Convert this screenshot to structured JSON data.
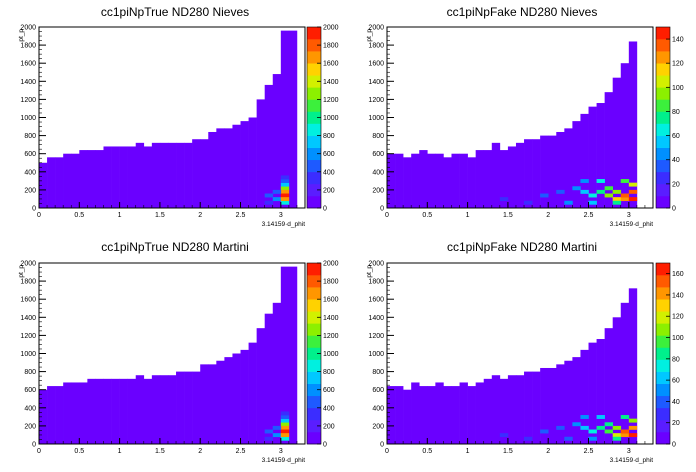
{
  "chart_data": [
    {
      "type": "heatmap",
      "title": "cc1piNpTrue ND280 Nieves",
      "xlabel": "3.14159·d_phit",
      "ylabel": "pt_p",
      "xlim": [
        0,
        3.3
      ],
      "ylim": [
        0,
        2000
      ],
      "xticks": [
        "0",
        "0.5",
        "1",
        "1.5",
        "2",
        "2.5",
        "3"
      ],
      "yticks": [
        "0",
        "200",
        "400",
        "600",
        "800",
        "1000",
        "1200",
        "1400",
        "1600",
        "1800",
        "2000"
      ],
      "zlim": [
        0,
        2000
      ],
      "zticks": [
        "0",
        "200",
        "400",
        "600",
        "800",
        "1000",
        "1200",
        "1400",
        "1600",
        "1800",
        "2000"
      ],
      "grid": false,
      "profile": [
        [
          0.1,
          500
        ],
        [
          0.2,
          560
        ],
        [
          0.3,
          560
        ],
        [
          0.4,
          600
        ],
        [
          0.5,
          600
        ],
        [
          0.6,
          640
        ],
        [
          0.7,
          640
        ],
        [
          0.8,
          640
        ],
        [
          0.9,
          680
        ],
        [
          1.0,
          680
        ],
        [
          1.1,
          680
        ],
        [
          1.2,
          680
        ],
        [
          1.3,
          720
        ],
        [
          1.4,
          680
        ],
        [
          1.5,
          720
        ],
        [
          1.6,
          720
        ],
        [
          1.7,
          720
        ],
        [
          1.8,
          720
        ],
        [
          1.9,
          720
        ],
        [
          2.0,
          760
        ],
        [
          2.1,
          760
        ],
        [
          2.2,
          840
        ],
        [
          2.3,
          880
        ],
        [
          2.4,
          880
        ],
        [
          2.5,
          920
        ],
        [
          2.6,
          960
        ],
        [
          2.7,
          1000
        ],
        [
          2.8,
          1200
        ],
        [
          2.9,
          1360
        ],
        [
          3.0,
          1480
        ],
        [
          3.1,
          1960
        ],
        [
          3.2,
          1960
        ]
      ],
      "hotspots": [
        {
          "x": 2.9,
          "y": 160,
          "value": 400
        },
        {
          "x": 3.0,
          "y": 120,
          "value": 600
        },
        {
          "x": 3.1,
          "y": 80,
          "value": 900
        },
        {
          "x": 3.1,
          "y": 240,
          "value": 1300
        },
        {
          "x": 3.1,
          "y": 200,
          "value": 1600
        },
        {
          "x": 3.1,
          "y": 160,
          "value": 1900
        },
        {
          "x": 3.1,
          "y": 120,
          "value": 1700
        },
        {
          "x": 3.1,
          "y": 280,
          "value": 700
        },
        {
          "x": 3.1,
          "y": 320,
          "value": 500
        },
        {
          "x": 3.1,
          "y": 360,
          "value": 350
        },
        {
          "x": 3.0,
          "y": 200,
          "value": 400
        },
        {
          "x": 2.9,
          "y": 80,
          "value": 300
        }
      ]
    },
    {
      "type": "heatmap",
      "title": "cc1piNpFake ND280 Nieves",
      "xlabel": "3.14159·d_phit",
      "ylabel": "pt_p",
      "xlim": [
        0,
        3.3
      ],
      "ylim": [
        0,
        2000
      ],
      "xticks": [
        "0",
        "0.5",
        "1",
        "1.5",
        "2",
        "2.5",
        "3"
      ],
      "yticks": [
        "0",
        "200",
        "400",
        "600",
        "800",
        "1000",
        "1200",
        "1400",
        "1600",
        "1800",
        "2000"
      ],
      "zlim": [
        0,
        150
      ],
      "zticks": [
        "0",
        "20",
        "40",
        "60",
        "80",
        "100",
        "120",
        "140"
      ],
      "grid": false,
      "profile": [
        [
          0.1,
          600
        ],
        [
          0.2,
          600
        ],
        [
          0.3,
          560
        ],
        [
          0.4,
          600
        ],
        [
          0.5,
          640
        ],
        [
          0.6,
          600
        ],
        [
          0.7,
          600
        ],
        [
          0.8,
          560
        ],
        [
          0.9,
          600
        ],
        [
          1.0,
          600
        ],
        [
          1.1,
          560
        ],
        [
          1.2,
          640
        ],
        [
          1.3,
          640
        ],
        [
          1.4,
          720
        ],
        [
          1.5,
          640
        ],
        [
          1.6,
          680
        ],
        [
          1.7,
          720
        ],
        [
          1.8,
          760
        ],
        [
          1.9,
          760
        ],
        [
          2.0,
          800
        ],
        [
          2.1,
          800
        ],
        [
          2.2,
          840
        ],
        [
          2.3,
          880
        ],
        [
          2.4,
          960
        ],
        [
          2.5,
          1040
        ],
        [
          2.6,
          1120
        ],
        [
          2.7,
          1160
        ],
        [
          2.8,
          1280
        ],
        [
          2.9,
          1440
        ],
        [
          3.0,
          1600
        ],
        [
          3.1,
          1840
        ]
      ],
      "hotspots": [
        {
          "x": 2.0,
          "y": 160,
          "value": 30
        },
        {
          "x": 2.2,
          "y": 200,
          "value": 35
        },
        {
          "x": 2.4,
          "y": 240,
          "value": 45
        },
        {
          "x": 2.5,
          "y": 200,
          "value": 55
        },
        {
          "x": 2.6,
          "y": 160,
          "value": 65
        },
        {
          "x": 2.7,
          "y": 200,
          "value": 75
        },
        {
          "x": 2.8,
          "y": 240,
          "value": 80
        },
        {
          "x": 2.8,
          "y": 160,
          "value": 90
        },
        {
          "x": 2.9,
          "y": 120,
          "value": 110
        },
        {
          "x": 2.9,
          "y": 200,
          "value": 95
        },
        {
          "x": 3.0,
          "y": 120,
          "value": 125
        },
        {
          "x": 3.0,
          "y": 160,
          "value": 135
        },
        {
          "x": 3.1,
          "y": 120,
          "value": 145
        },
        {
          "x": 3.1,
          "y": 200,
          "value": 130
        },
        {
          "x": 3.1,
          "y": 280,
          "value": 100
        },
        {
          "x": 3.0,
          "y": 320,
          "value": 80
        },
        {
          "x": 2.7,
          "y": 320,
          "value": 60
        },
        {
          "x": 2.5,
          "y": 320,
          "value": 45
        },
        {
          "x": 1.5,
          "y": 120,
          "value": 28
        },
        {
          "x": 1.8,
          "y": 80,
          "value": 25
        },
        {
          "x": 2.3,
          "y": 80,
          "value": 40
        },
        {
          "x": 2.6,
          "y": 80,
          "value": 50
        },
        {
          "x": 2.9,
          "y": 80,
          "value": 70
        }
      ]
    },
    {
      "type": "heatmap",
      "title": "cc1piNpTrue ND280 Martini",
      "xlabel": "3.14159·d_phit",
      "ylabel": "pt_p",
      "xlim": [
        0,
        3.3
      ],
      "ylim": [
        0,
        2000
      ],
      "xticks": [
        "0",
        "0.5",
        "1",
        "1.5",
        "2",
        "2.5",
        "3"
      ],
      "yticks": [
        "0",
        "200",
        "400",
        "600",
        "800",
        "1000",
        "1200",
        "1400",
        "1600",
        "1800",
        "2000"
      ],
      "zlim": [
        0,
        2000
      ],
      "zticks": [
        "0",
        "200",
        "400",
        "600",
        "800",
        "1000",
        "1200",
        "1400",
        "1600",
        "1800",
        "2000"
      ],
      "grid": false,
      "profile": [
        [
          0.1,
          600
        ],
        [
          0.2,
          640
        ],
        [
          0.3,
          640
        ],
        [
          0.4,
          680
        ],
        [
          0.5,
          680
        ],
        [
          0.6,
          680
        ],
        [
          0.7,
          720
        ],
        [
          0.8,
          720
        ],
        [
          0.9,
          720
        ],
        [
          1.0,
          720
        ],
        [
          1.1,
          720
        ],
        [
          1.2,
          720
        ],
        [
          1.3,
          760
        ],
        [
          1.4,
          720
        ],
        [
          1.5,
          760
        ],
        [
          1.6,
          760
        ],
        [
          1.7,
          760
        ],
        [
          1.8,
          800
        ],
        [
          1.9,
          800
        ],
        [
          2.0,
          800
        ],
        [
          2.1,
          880
        ],
        [
          2.2,
          880
        ],
        [
          2.3,
          920
        ],
        [
          2.4,
          960
        ],
        [
          2.5,
          1000
        ],
        [
          2.6,
          1040
        ],
        [
          2.7,
          1120
        ],
        [
          2.8,
          1280
        ],
        [
          2.9,
          1440
        ],
        [
          3.0,
          1560
        ],
        [
          3.1,
          1960
        ],
        [
          3.2,
          1960
        ]
      ],
      "hotspots": [
        {
          "x": 2.9,
          "y": 160,
          "value": 400
        },
        {
          "x": 3.0,
          "y": 120,
          "value": 600
        },
        {
          "x": 3.1,
          "y": 80,
          "value": 900
        },
        {
          "x": 3.1,
          "y": 240,
          "value": 1300
        },
        {
          "x": 3.1,
          "y": 200,
          "value": 1600
        },
        {
          "x": 3.1,
          "y": 160,
          "value": 1900
        },
        {
          "x": 3.1,
          "y": 120,
          "value": 1700
        },
        {
          "x": 3.1,
          "y": 280,
          "value": 700
        },
        {
          "x": 3.1,
          "y": 320,
          "value": 500
        },
        {
          "x": 3.1,
          "y": 360,
          "value": 350
        },
        {
          "x": 3.0,
          "y": 200,
          "value": 400
        },
        {
          "x": 2.9,
          "y": 80,
          "value": 300
        }
      ]
    },
    {
      "type": "heatmap",
      "title": "cc1piNpFake ND280 Martini",
      "xlabel": "3.14159·d_phit",
      "ylabel": "pt_p",
      "xlim": [
        0,
        3.3
      ],
      "ylim": [
        0,
        2000
      ],
      "xticks": [
        "0",
        "0.5",
        "1",
        "1.5",
        "2",
        "2.5",
        "3"
      ],
      "yticks": [
        "0",
        "200",
        "400",
        "600",
        "800",
        "1000",
        "1200",
        "1400",
        "1600",
        "1800",
        "2000"
      ],
      "zlim": [
        0,
        170
      ],
      "zticks": [
        "0",
        "20",
        "40",
        "60",
        "80",
        "100",
        "120",
        "140",
        "160"
      ],
      "grid": false,
      "profile": [
        [
          0.1,
          640
        ],
        [
          0.2,
          640
        ],
        [
          0.3,
          600
        ],
        [
          0.4,
          680
        ],
        [
          0.5,
          640
        ],
        [
          0.6,
          640
        ],
        [
          0.7,
          680
        ],
        [
          0.8,
          640
        ],
        [
          0.9,
          640
        ],
        [
          1.0,
          680
        ],
        [
          1.1,
          640
        ],
        [
          1.2,
          680
        ],
        [
          1.3,
          720
        ],
        [
          1.4,
          760
        ],
        [
          1.5,
          720
        ],
        [
          1.6,
          760
        ],
        [
          1.7,
          760
        ],
        [
          1.8,
          800
        ],
        [
          1.9,
          800
        ],
        [
          2.0,
          840
        ],
        [
          2.1,
          840
        ],
        [
          2.2,
          880
        ],
        [
          2.3,
          920
        ],
        [
          2.4,
          960
        ],
        [
          2.5,
          1040
        ],
        [
          2.6,
          1120
        ],
        [
          2.7,
          1160
        ],
        [
          2.8,
          1280
        ],
        [
          2.9,
          1400
        ],
        [
          3.0,
          1560
        ],
        [
          3.1,
          1720
        ]
      ],
      "hotspots": [
        {
          "x": 2.0,
          "y": 160,
          "value": 35
        },
        {
          "x": 2.2,
          "y": 200,
          "value": 40
        },
        {
          "x": 2.4,
          "y": 240,
          "value": 50
        },
        {
          "x": 2.5,
          "y": 200,
          "value": 60
        },
        {
          "x": 2.6,
          "y": 160,
          "value": 70
        },
        {
          "x": 2.7,
          "y": 200,
          "value": 80
        },
        {
          "x": 2.8,
          "y": 240,
          "value": 90
        },
        {
          "x": 2.8,
          "y": 160,
          "value": 100
        },
        {
          "x": 2.9,
          "y": 120,
          "value": 120
        },
        {
          "x": 2.9,
          "y": 200,
          "value": 105
        },
        {
          "x": 3.0,
          "y": 120,
          "value": 140
        },
        {
          "x": 3.0,
          "y": 160,
          "value": 150
        },
        {
          "x": 3.1,
          "y": 120,
          "value": 165
        },
        {
          "x": 3.1,
          "y": 200,
          "value": 145
        },
        {
          "x": 3.1,
          "y": 280,
          "value": 110
        },
        {
          "x": 3.0,
          "y": 320,
          "value": 90
        },
        {
          "x": 2.7,
          "y": 320,
          "value": 65
        },
        {
          "x": 2.5,
          "y": 320,
          "value": 50
        },
        {
          "x": 1.5,
          "y": 120,
          "value": 30
        },
        {
          "x": 1.8,
          "y": 80,
          "value": 28
        },
        {
          "x": 2.3,
          "y": 80,
          "value": 45
        },
        {
          "x": 2.6,
          "y": 80,
          "value": 55
        },
        {
          "x": 2.9,
          "y": 80,
          "value": 80
        }
      ]
    }
  ]
}
